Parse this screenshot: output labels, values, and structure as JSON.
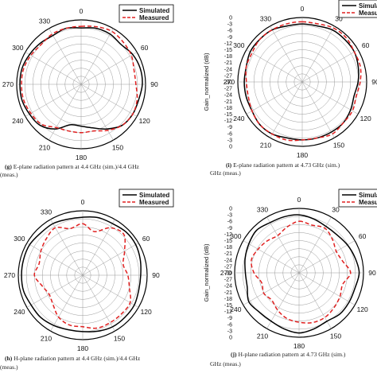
{
  "chart_data": [
    {
      "type": "polar-line",
      "panel": "g",
      "caption_letter": "(g)",
      "caption_line1": "E-plane radiation pattern at 4.4 GHz (sim.)/4.4 GHz",
      "caption_line2": "(meas.)",
      "angle_labels": [
        "0",
        "60",
        "90",
        "120",
        "150",
        "180",
        "210",
        "240",
        "270",
        "300",
        "330"
      ],
      "radial_tick_labels": [],
      "ylabel": "",
      "r_range_db": [
        -40,
        0
      ],
      "legend": {
        "placement": "top-right",
        "entries": [
          "Simulated",
          "Measured"
        ]
      },
      "series": [
        {
          "name": "Simulated",
          "style": "solid",
          "color": "#000000",
          "angles": [
            0,
            15,
            30,
            45,
            60,
            75,
            90,
            105,
            120,
            135,
            150,
            165,
            180,
            195,
            210,
            225,
            240,
            255,
            270,
            285,
            300,
            315,
            330,
            345
          ],
          "values_db": [
            -5,
            -4,
            -4,
            -5,
            -3,
            -2,
            -2,
            -3,
            -3,
            -4,
            -8,
            -12,
            -14,
            -14,
            -8,
            -4,
            -3,
            -2,
            -2,
            -2,
            -3,
            -4,
            -5,
            -4
          ]
        },
        {
          "name": "Measured",
          "style": "dashed",
          "color": "#e02020",
          "angles": [
            0,
            15,
            30,
            45,
            60,
            75,
            90,
            105,
            120,
            135,
            150,
            165,
            180,
            195,
            210,
            225,
            240,
            255,
            270,
            285,
            300,
            315,
            330,
            345
          ],
          "values_db": [
            -4,
            -3,
            -2,
            -3,
            -4,
            -6,
            -6,
            -4,
            -3,
            -4,
            -7,
            -10,
            -10,
            -10,
            -9,
            -5,
            -4,
            -3,
            -3,
            -3,
            -4,
            -5,
            -4,
            -4
          ]
        }
      ]
    },
    {
      "type": "polar-line",
      "panel": "i",
      "caption_letter": "(i)",
      "caption_line1": "E-plane radiation pattern at 4.73 GHz (sim.)",
      "caption_line2": "GHz (meas.)",
      "angle_labels": [
        "0",
        "30",
        "60",
        "90",
        "120",
        "150",
        "180",
        "210",
        "240",
        "270",
        "300",
        "330"
      ],
      "radial_tick_labels": [
        "0",
        "-3",
        "-6",
        "-9",
        "-12",
        "-15",
        "-18",
        "-21",
        "-24",
        "-27",
        "-30",
        "-27",
        "-24",
        "-21",
        "-18",
        "-15",
        "-12",
        "-9",
        "-6",
        "-3",
        "0"
      ],
      "ylabel": "Gain_normalized (dB)",
      "r_range_db": [
        -30,
        0
      ],
      "legend": {
        "placement": "top-right",
        "entries": [
          "Simulated",
          "Measured"
        ]
      },
      "series": [
        {
          "name": "Simulated",
          "style": "solid",
          "color": "#000000",
          "angles": [
            0,
            15,
            30,
            45,
            60,
            75,
            90,
            105,
            120,
            135,
            150,
            165,
            180,
            195,
            210,
            225,
            240,
            255,
            270,
            285,
            300,
            315,
            330,
            345
          ],
          "values_db": [
            -3,
            -3,
            -2,
            -2,
            -2,
            -3,
            -4,
            -5,
            -4,
            -3,
            -3,
            -3,
            -3,
            -3,
            -2,
            -2,
            -3,
            -3,
            -3,
            -3,
            -2,
            -2,
            -2,
            -3
          ]
        },
        {
          "name": "Measured",
          "style": "dashed",
          "color": "#e02020",
          "angles": [
            0,
            15,
            30,
            45,
            60,
            75,
            90,
            105,
            120,
            135,
            150,
            165,
            180,
            195,
            210,
            225,
            240,
            255,
            270,
            285,
            300,
            315,
            330,
            345
          ],
          "values_db": [
            -2,
            -2,
            -1,
            -1,
            -2,
            -2,
            -3,
            -4,
            -3,
            -3,
            -2,
            -3,
            -3,
            -2,
            -2,
            -2,
            -3,
            -4,
            -4,
            -3,
            -3,
            -2,
            -2,
            -2
          ]
        }
      ]
    },
    {
      "type": "polar-line",
      "panel": "h",
      "caption_letter": "(h)",
      "caption_line1": "H-plane radiation pattern at 4.4 GHz (sim.)/4.4 GHz",
      "caption_line2": "(meas.)",
      "angle_labels": [
        "0",
        "60",
        "90",
        "120",
        "150",
        "180",
        "210",
        "240",
        "270",
        "300",
        "330"
      ],
      "radial_tick_labels": [],
      "ylabel": "",
      "r_range_db": [
        -40,
        0
      ],
      "legend": {
        "placement": "top-right",
        "entries": [
          "Simulated",
          "Measured"
        ]
      },
      "series": [
        {
          "name": "Simulated",
          "style": "solid",
          "color": "#000000",
          "angles": [
            0,
            15,
            30,
            45,
            60,
            75,
            90,
            105,
            120,
            135,
            150,
            165,
            180,
            195,
            210,
            225,
            240,
            255,
            270,
            285,
            300,
            315,
            330,
            345
          ],
          "values_db": [
            -4,
            -3,
            -3,
            -2,
            -2,
            -3,
            -4,
            -4,
            -3,
            -3,
            -3,
            -4,
            -5,
            -5,
            -4,
            -3,
            -3,
            -2,
            -2,
            -2,
            -2,
            -3,
            -3,
            -4
          ]
        },
        {
          "name": "Measured",
          "style": "dashed",
          "color": "#e02020",
          "angles": [
            0,
            15,
            30,
            45,
            60,
            75,
            90,
            105,
            120,
            135,
            150,
            165,
            180,
            195,
            210,
            225,
            240,
            255,
            270,
            285,
            300,
            315,
            330,
            345
          ],
          "values_db": [
            -8,
            -12,
            -6,
            -4,
            -10,
            -14,
            -12,
            -10,
            -6,
            -6,
            -6,
            -6,
            -8,
            -8,
            -10,
            -14,
            -16,
            -14,
            -10,
            -12,
            -10,
            -8,
            -6,
            -10
          ]
        }
      ]
    },
    {
      "type": "polar-line",
      "panel": "j",
      "caption_letter": "(j)",
      "caption_line1": "H-plane radiation pattern at 4.73 GHz (sim.)",
      "caption_line2": "GHz (meas.)",
      "angle_labels": [
        "0",
        "30",
        "60",
        "90",
        "120",
        "150",
        "180",
        "210",
        "240",
        "270",
        "300",
        "330"
      ],
      "radial_tick_labels": [
        "0",
        "-3",
        "-6",
        "-9",
        "-12",
        "-15",
        "-18",
        "-21",
        "-24",
        "-27",
        "-30",
        "-27",
        "-24",
        "-21",
        "-18",
        "-15",
        "-12",
        "-9",
        "-6",
        "-3",
        "0"
      ],
      "ylabel": "Gain_normalized (dB)",
      "r_range_db": [
        -30,
        0
      ],
      "legend": {
        "placement": "top-right",
        "entries": [
          "Simulated",
          "Measured"
        ]
      },
      "series": [
        {
          "name": "Simulated",
          "style": "solid",
          "color": "#000000",
          "angles": [
            0,
            15,
            30,
            45,
            60,
            75,
            90,
            105,
            120,
            135,
            150,
            165,
            180,
            195,
            210,
            225,
            240,
            255,
            270,
            285,
            300,
            315,
            330,
            345
          ],
          "values_db": [
            -3,
            -4,
            -5,
            -5,
            -4,
            -3,
            -2,
            -3,
            -3,
            -3,
            -4,
            -3,
            -2,
            -3,
            -4,
            -4,
            -3,
            -5,
            -5,
            -4,
            -3,
            -2,
            -3,
            -3
          ]
        },
        {
          "name": "Measured",
          "style": "dashed",
          "color": "#e02020",
          "angles": [
            0,
            15,
            30,
            45,
            60,
            75,
            90,
            105,
            120,
            135,
            150,
            165,
            180,
            195,
            210,
            225,
            240,
            255,
            270,
            285,
            300,
            315,
            330,
            345
          ],
          "values_db": [
            -6,
            -7,
            -6,
            -8,
            -10,
            -9,
            -6,
            -9,
            -8,
            -7,
            -6,
            -6,
            -7,
            -8,
            -10,
            -12,
            -11,
            -12,
            -9,
            -7,
            -8,
            -9,
            -10,
            -8
          ]
        }
      ]
    }
  ]
}
